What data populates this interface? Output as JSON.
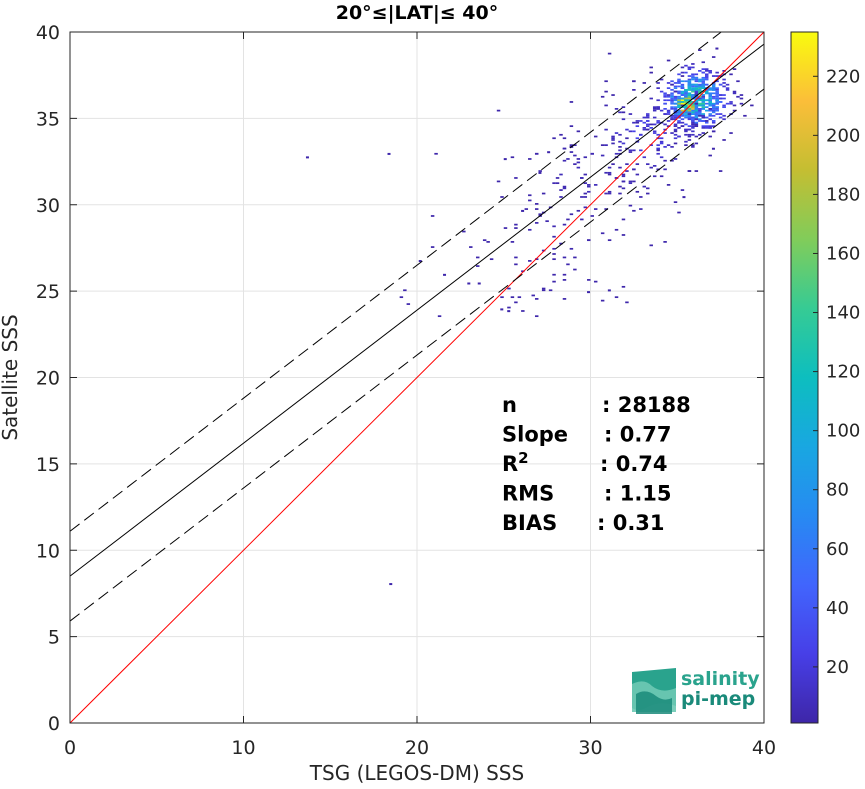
{
  "chart_data": {
    "type": "heatmap",
    "title": "20°≤|LAT|≤ 40°",
    "xlabel": "TSG (LEGOS-DM) SSS",
    "ylabel": "Satellite SSS",
    "xlim": [
      0,
      40
    ],
    "ylim": [
      0,
      40
    ],
    "xticks": [
      "0",
      "10",
      "20",
      "30",
      "40"
    ],
    "yticks": [
      "0",
      "5",
      "10",
      "15",
      "20",
      "25",
      "30",
      "35",
      "40"
    ],
    "grid": true,
    "colorbar": {
      "range": [
        1,
        235
      ],
      "ticks": [
        "20",
        "40",
        "60",
        "80",
        "100",
        "120",
        "140",
        "160",
        "180",
        "200",
        "220"
      ],
      "colormap": "parula"
    },
    "lines": [
      {
        "kind": "one-to-one",
        "color": "#ff0000",
        "intercept": 0,
        "slope": 1
      },
      {
        "kind": "regression",
        "color": "#000000",
        "intercept": 8.5,
        "slope": 0.77
      },
      {
        "kind": "regression+offset",
        "color": "#000000",
        "style": "dashed",
        "intercept": 11.1,
        "slope": 0.77
      },
      {
        "kind": "regression-offset",
        "color": "#000000",
        "style": "dashed",
        "intercept": 5.9,
        "slope": 0.77
      }
    ],
    "density_clusters": [
      {
        "x": 36,
        "y": 36.1,
        "sx": 1.0,
        "sy": 0.9,
        "n": 560,
        "count": 120
      },
      {
        "x": 35.5,
        "y": 35.8,
        "sx": 0.45,
        "sy": 0.45,
        "n": 140,
        "count": 200
      },
      {
        "x": 33.5,
        "y": 34.2,
        "sx": 1.6,
        "sy": 1.3,
        "n": 140,
        "count": 20
      },
      {
        "x": 30.5,
        "y": 31.5,
        "sx": 2.8,
        "sy": 1.6,
        "n": 110,
        "count": 6
      },
      {
        "x": 28.0,
        "y": 28.0,
        "sx": 3.0,
        "sy": 1.5,
        "n": 50,
        "count": 3
      },
      {
        "x": 27.0,
        "y": 25.0,
        "sx": 3.0,
        "sy": 0.6,
        "n": 25,
        "count": 2
      }
    ],
    "scatter_points": [
      {
        "x": 13.6,
        "y": 32.7
      },
      {
        "x": 18.3,
        "y": 32.9
      },
      {
        "x": 18.4,
        "y": 8.0
      },
      {
        "x": 20.1,
        "y": 26.7
      },
      {
        "x": 24.8,
        "y": 23.9
      },
      {
        "x": 25.2,
        "y": 23.8
      },
      {
        "x": 22.9,
        "y": 25.4
      },
      {
        "x": 23.5,
        "y": 25.4
      },
      {
        "x": 26.0,
        "y": 29.6
      },
      {
        "x": 27.0,
        "y": 31.8
      },
      {
        "x": 31.0,
        "y": 25.0
      },
      {
        "x": 35.3,
        "y": 30.4
      },
      {
        "x": 37.2,
        "y": 39.0
      },
      {
        "x": 37.0,
        "y": 33.2
      },
      {
        "x": 25.0,
        "y": 32.6
      },
      {
        "x": 27.5,
        "y": 33.0
      },
      {
        "x": 29.8,
        "y": 24.9
      },
      {
        "x": 21.5,
        "y": 25.9
      }
    ],
    "stats": [
      {
        "label": "n",
        "value": ": 28188"
      },
      {
        "label": "Slope",
        "value": ": 0.77"
      },
      {
        "label": "R",
        "sup": "2",
        "value": ": 0.74"
      },
      {
        "label": "RMS",
        "value": ": 1.15"
      },
      {
        "label": "BIAS",
        "value": ": 0.31"
      }
    ]
  },
  "logo": {
    "line1": "salinity",
    "line2": "pi-mep",
    "colors": [
      "#1a8a7a",
      "#2aa38d",
      "#6ec9b4"
    ]
  }
}
